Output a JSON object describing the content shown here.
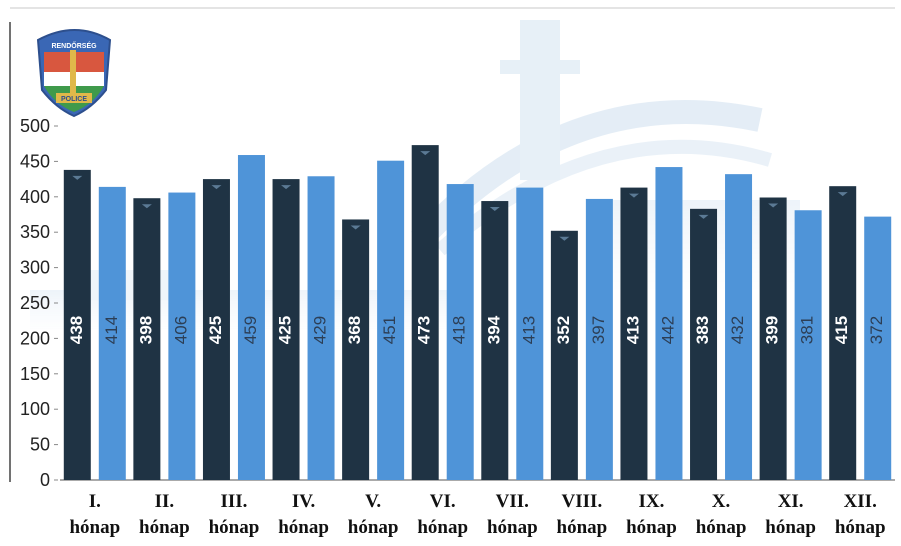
{
  "emblem": {
    "top_text": "RENDŐRSÉG",
    "bottom_text": "POLICE",
    "colors": {
      "red": "#d8573f",
      "white": "#ffffff",
      "green": "#3f9a4b",
      "blue": "#3a67b5",
      "gold": "#e0b84a"
    }
  },
  "chart_data": {
    "type": "bar",
    "categories": [
      [
        "I.",
        "hónap"
      ],
      [
        "II.",
        "hónap"
      ],
      [
        "III.",
        "hónap"
      ],
      [
        "IV.",
        "hónap"
      ],
      [
        "V.",
        "hónap"
      ],
      [
        "VI.",
        "hónap"
      ],
      [
        "VII.",
        "hónap"
      ],
      [
        "VIII.",
        "hónap"
      ],
      [
        "IX.",
        "hónap"
      ],
      [
        "X.",
        "hónap"
      ],
      [
        "XI.",
        "hónap"
      ],
      [
        "XII.",
        "hónap"
      ]
    ],
    "series": [
      {
        "values": [
          438,
          398,
          425,
          425,
          368,
          473,
          394,
          352,
          413,
          383,
          399,
          415
        ],
        "color": "#1f3344"
      },
      {
        "values": [
          414,
          406,
          459,
          429,
          451,
          418,
          413,
          397,
          442,
          432,
          381,
          372
        ],
        "color": "#4f94d8"
      }
    ],
    "yticks": [
      0,
      50,
      100,
      150,
      200,
      250,
      300,
      350,
      400,
      450,
      500
    ],
    "ylim": [
      0,
      500
    ],
    "grid": false,
    "legend": "none",
    "data_labels": "inside-vertical"
  }
}
